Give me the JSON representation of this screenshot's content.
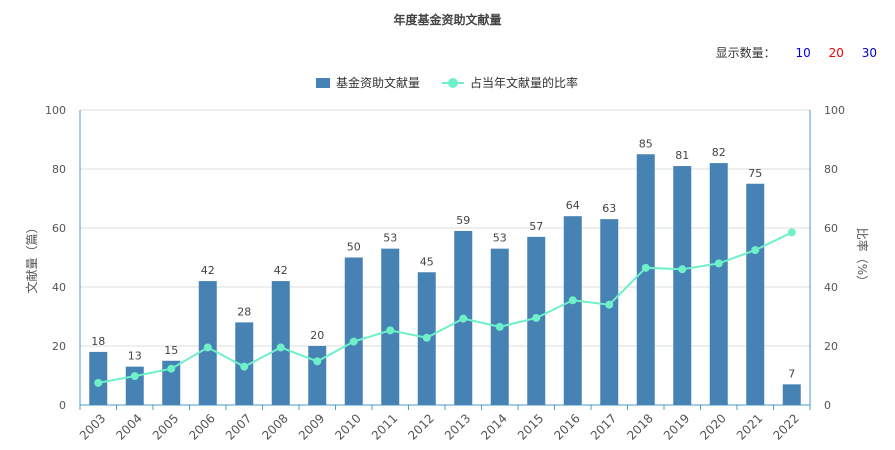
{
  "title": "年度基金资助文献量",
  "count_selector": {
    "label": "显示数量：",
    "options": [
      {
        "value": "10",
        "color": "#0000ee"
      },
      {
        "value": "20",
        "color": "#ee0000"
      },
      {
        "value": "30",
        "color": "#0000cc"
      }
    ]
  },
  "colors": {
    "bar": "#4682b4",
    "line": "#6ef0c8",
    "axis": "#4a9cc8",
    "grid": "#dddddd"
  },
  "chart_data": {
    "type": "bar",
    "title": "年度基金资助文献量",
    "categories": [
      "2003",
      "2004",
      "2005",
      "2006",
      "2007",
      "2008",
      "2009",
      "2010",
      "2011",
      "2012",
      "2013",
      "2014",
      "2015",
      "2016",
      "2017",
      "2018",
      "2019",
      "2020",
      "2021",
      "2022"
    ],
    "series": [
      {
        "name": "基金资助文献量",
        "type": "bar",
        "axis": "left",
        "values": [
          18,
          13,
          15,
          42,
          28,
          42,
          20,
          50,
          53,
          45,
          59,
          53,
          57,
          64,
          63,
          85,
          81,
          82,
          75,
          7
        ]
      },
      {
        "name": "占当年文献量的比率",
        "type": "line",
        "axis": "right",
        "values": [
          7.5,
          9.8,
          12.3,
          19.5,
          13.0,
          19.5,
          14.8,
          21.5,
          25.3,
          22.8,
          29.3,
          26.5,
          29.5,
          35.5,
          34.0,
          46.5,
          46.0,
          48.0,
          52.5,
          58.5
        ]
      }
    ],
    "ylabel": "文献量（篇）",
    "ylabel_right": "比率（%）",
    "ylim": [
      0,
      100
    ],
    "ylim_right": [
      0,
      100
    ],
    "yticks": [
      0,
      20,
      40,
      60,
      80,
      100
    ],
    "grid": true,
    "legend_position": "top-center"
  }
}
